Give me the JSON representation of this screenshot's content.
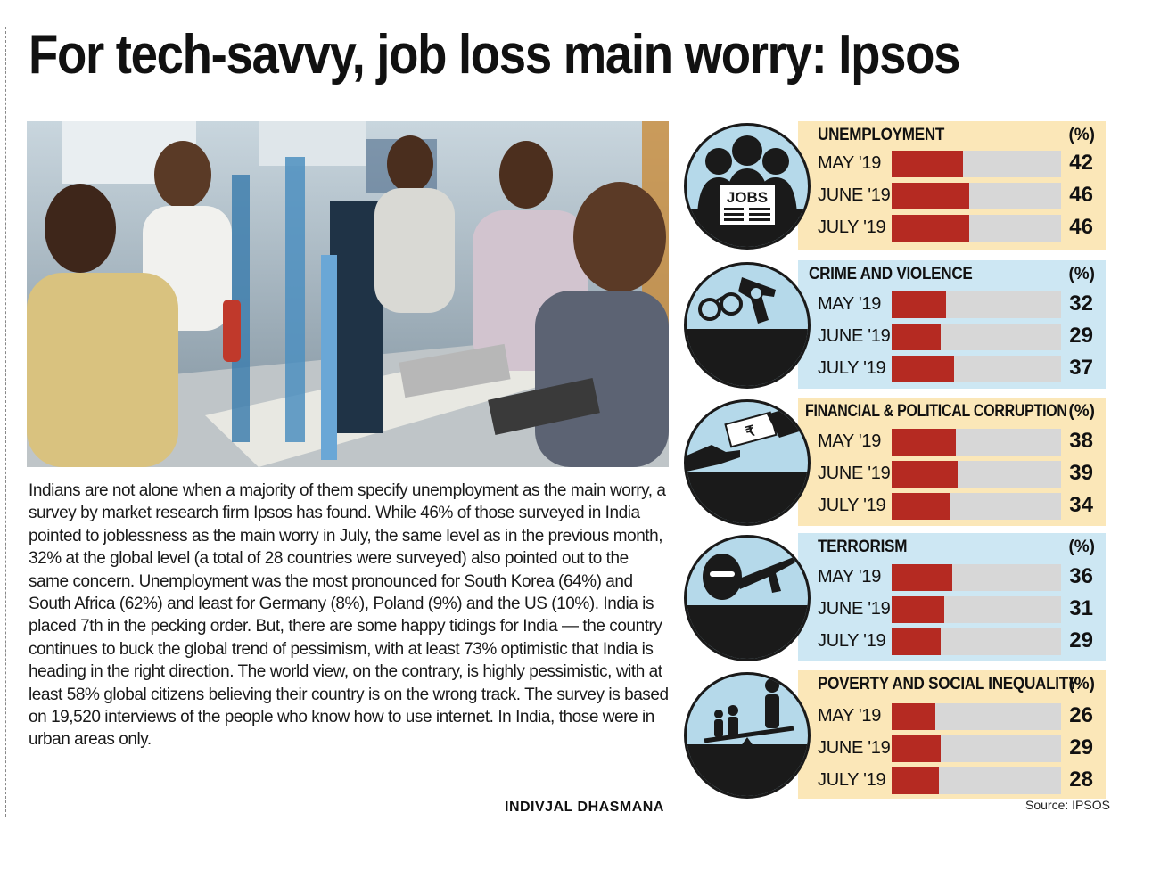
{
  "headline": "For tech-savvy, job loss main worry: Ipsos",
  "article": "Indians are not alone when a majority of them specify unemployment as the main worry, a survey by market research firm Ipsos has found. While 46% of those surveyed in India pointed to joblessness as the main worry in July, the same level as in the previous month, 32% at the global level (a total of 28 countries were surveyed) also pointed out to the same concern. Unemployment was the most pronounced for South Korea (64%) and South Africa (62%) and least for Germany (8%), Poland (9%) and the US (10%). India is placed 7th in the pecking order. But, there are some happy tidings for India — the country continues to buck the global trend of pessimism, with at least 73% optimistic that India is heading in the right direction. The world view, on the contrary, is highly pessimistic, with at least 58% global citizens believing their country is on the wrong track. The survey is based on 19,520 interviews of the people who know how to use internet. In India, those were in urban areas only.",
  "byline": "INDIVJAL DHASMANA",
  "source": "Source: IPSOS",
  "colors": {
    "bar": "#b52a22",
    "track": "#d7d7d7",
    "panel_yellow": "#fbe7b8",
    "panel_blue": "#cde7f3",
    "circle": "#b5d9ea"
  },
  "jobs_sign": "JOBS",
  "chart_data": [
    {
      "type": "bar",
      "title": "UNEMPLOYMENT",
      "unit": "(%)",
      "icon": "jobs-crowd-icon",
      "categories": [
        "MAY '19",
        "JUNE '19",
        "JULY '19"
      ],
      "values": [
        42,
        46,
        46
      ],
      "xlim": [
        0,
        100
      ]
    },
    {
      "type": "bar",
      "title": "CRIME AND VIOLENCE",
      "unit": "(%)",
      "icon": "handcuffs-gun-icon",
      "categories": [
        "MAY '19",
        "JUNE '19",
        "JULY '19"
      ],
      "values": [
        32,
        29,
        37
      ],
      "xlim": [
        0,
        100
      ]
    },
    {
      "type": "bar",
      "title": "FINANCIAL & POLITICAL CORRUPTION",
      "unit": "(%)",
      "icon": "bribe-money-icon",
      "categories": [
        "MAY '19",
        "JUNE '19",
        "JULY '19"
      ],
      "values": [
        38,
        39,
        34
      ],
      "xlim": [
        0,
        100
      ]
    },
    {
      "type": "bar",
      "title": "TERRORISM",
      "unit": "(%)",
      "icon": "masked-terrorist-rifle-icon",
      "categories": [
        "MAY '19",
        "JUNE '19",
        "JULY '19"
      ],
      "values": [
        36,
        31,
        29
      ],
      "xlim": [
        0,
        100
      ]
    },
    {
      "type": "bar",
      "title": "POVERTY AND SOCIAL INEQUALITY",
      "unit": "(%)",
      "icon": "seesaw-people-icon",
      "categories": [
        "MAY '19",
        "JUNE '19",
        "JULY '19"
      ],
      "values": [
        26,
        29,
        28
      ],
      "xlim": [
        0,
        100
      ]
    }
  ]
}
